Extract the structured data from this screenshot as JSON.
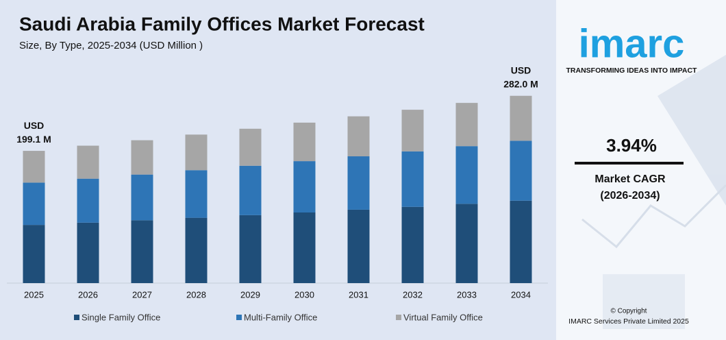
{
  "chart_data": {
    "type": "stacked_bar",
    "title": "Saudi Arabia Family Offices Market Forecast",
    "subtitle": "Size, By Type, 2025-2034 (USD Million )",
    "categories": [
      "2025",
      "2026",
      "2027",
      "2028",
      "2029",
      "2030",
      "2031",
      "2032",
      "2033",
      "2034"
    ],
    "series": [
      {
        "name": "Single Family Office",
        "color": "#1f4e79",
        "values": [
          87.6,
          91.0,
          94.6,
          98.4,
          102.3,
          106.3,
          110.5,
          114.8,
          119.4,
          124.1
        ]
      },
      {
        "name": "Multi-Family Office",
        "color": "#2e75b6",
        "values": [
          63.7,
          66.2,
          68.8,
          71.6,
          74.4,
          77.3,
          80.4,
          83.5,
          86.8,
          90.2
        ]
      },
      {
        "name": "Virtual Family Office",
        "color": "#a6a6a6",
        "values": [
          47.8,
          49.7,
          51.7,
          53.6,
          55.7,
          58.0,
          60.2,
          62.7,
          65.1,
          67.7
        ]
      }
    ],
    "annotations": [
      [
        "USD",
        "199.1 M"
      ],
      [
        "USD",
        "282.0 M"
      ]
    ],
    "ylim": [
      0,
      290
    ],
    "legend": "bottom"
  },
  "sidebar": {
    "logo": "imarc",
    "tagline": "TRANSFORMING IDEAS INTO IMPACT",
    "cagr": "3.94%",
    "cagr_label": "Market CAGR",
    "cagr_period": "(2026-2034)",
    "copyright": "© Copyright",
    "company": "IMARC Services Private Limited 2025"
  }
}
